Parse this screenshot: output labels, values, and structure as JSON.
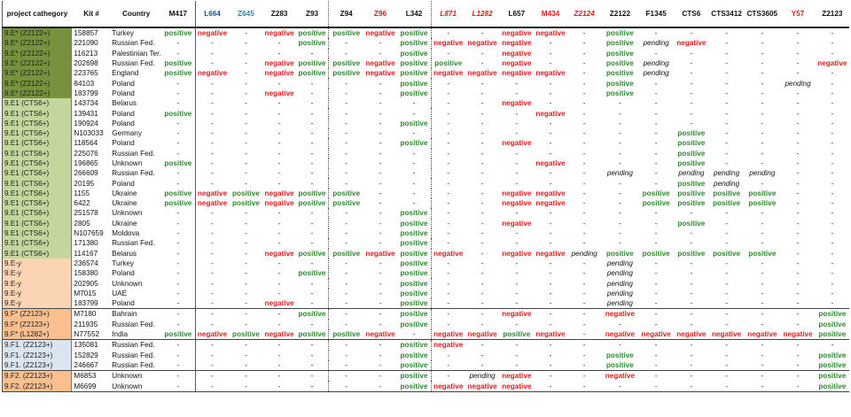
{
  "colors": {
    "positive": "#2d8a2d",
    "negative": "#e01b1b",
    "dark_green": "#76923c",
    "light_green": "#c3d69b",
    "peach": "#fbd4b4",
    "orange": "#fabf8f",
    "light_blue": "#dbe5f1",
    "header_blue": "#1f4e9c",
    "header_teal": "#31849b",
    "header_red": "#e01b1b"
  },
  "table": {
    "headers": [
      {
        "label": "project cathegory",
        "color": "#111111",
        "italic": false
      },
      {
        "label": "Kit #",
        "color": "#111111",
        "italic": false
      },
      {
        "label": "Country",
        "color": "#111111",
        "italic": false
      },
      {
        "label": "M417",
        "color": "#111111",
        "italic": false
      },
      {
        "label": "L664",
        "color": "#1f4e9c",
        "italic": false
      },
      {
        "label": "Z645",
        "color": "#31849b",
        "italic": false
      },
      {
        "label": "Z283",
        "color": "#111111",
        "italic": false
      },
      {
        "label": "Z93",
        "color": "#111111",
        "italic": false
      },
      {
        "label": "Z94",
        "color": "#111111",
        "italic": false
      },
      {
        "label": "Z96",
        "color": "#e01b1b",
        "italic": false
      },
      {
        "label": "L342",
        "color": "#111111",
        "italic": false
      },
      {
        "label": "L871",
        "color": "#e01b1b",
        "italic": true
      },
      {
        "label": "L1282",
        "color": "#e01b1b",
        "italic": true
      },
      {
        "label": "L657",
        "color": "#111111",
        "italic": false
      },
      {
        "label": "M434",
        "color": "#e01b1b",
        "italic": false
      },
      {
        "label": "Z2124",
        "color": "#e01b1b",
        "italic": true
      },
      {
        "label": "Z2122",
        "color": "#111111",
        "italic": false
      },
      {
        "label": "F1345",
        "color": "#111111",
        "italic": false
      },
      {
        "label": "CTS6",
        "color": "#111111",
        "italic": false
      },
      {
        "label": "CTS3412",
        "color": "#111111",
        "italic": false
      },
      {
        "label": "CTS3605",
        "color": "#111111",
        "italic": false
      },
      {
        "label": "Y57",
        "color": "#e01b1b",
        "italic": false
      },
      {
        "label": "Z2123",
        "color": "#111111",
        "italic": false
      }
    ],
    "rows": [
      {
        "cat": "9.E* (Z2122+)",
        "bg": "#76923c",
        "kit": "158857",
        "country": "Turkey",
        "sep": false,
        "vals": [
          "P",
          "N",
          "-",
          "N",
          "P",
          "P",
          "N",
          "P",
          "-",
          "-",
          "N",
          "N",
          "-",
          "P",
          "-",
          "-",
          "-",
          "-",
          "-",
          "-"
        ]
      },
      {
        "cat": "9.E* (Z2122+)",
        "bg": "#76923c",
        "kit": "221090",
        "country": "Russian Fed.",
        "sep": false,
        "vals": [
          "-",
          "-",
          "-",
          "-",
          "P",
          "-",
          "-",
          "P",
          "N",
          "N",
          "N",
          "-",
          "-",
          "P",
          "D",
          "N",
          "-",
          "-",
          "-",
          "-"
        ]
      },
      {
        "cat": "9.E* (Z2122+)",
        "bg": "#76923c",
        "kit": "116213",
        "country": "Palestinian Ter.",
        "sep": false,
        "vals": [
          "-",
          "-",
          "-",
          "-",
          "-",
          "-",
          "-",
          "P",
          "-",
          "-",
          "N",
          "-",
          "-",
          "P",
          "-",
          "-",
          "-",
          "-",
          "-",
          "-"
        ]
      },
      {
        "cat": "9.E* (Z2122+)",
        "bg": "#76923c",
        "kit": "202698",
        "country": "Russian Fed.",
        "sep": false,
        "vals": [
          "P",
          "-",
          "-",
          "N",
          "P",
          "P",
          "N",
          "P",
          "P",
          "-",
          "N",
          "-",
          "-",
          "P",
          "D",
          "-",
          "-",
          "-",
          "-",
          "N"
        ]
      },
      {
        "cat": "9.E* (Z2122+)",
        "bg": "#76923c",
        "kit": "223765",
        "country": "England",
        "sep": false,
        "vals": [
          "P",
          "N",
          "-",
          "N",
          "P",
          "P",
          "N",
          "P",
          "N",
          "N",
          "N",
          "N",
          "-",
          "P",
          "D",
          "-",
          "-",
          "-",
          "-",
          "-"
        ]
      },
      {
        "cat": "9.E* (Z2122+)",
        "bg": "#76923c",
        "kit": "84103",
        "country": "Poland",
        "sep": false,
        "vals": [
          "-",
          "-",
          "-",
          "-",
          "-",
          "-",
          "-",
          "P",
          "-",
          "-",
          "-",
          "-",
          "-",
          "P",
          "-",
          "-",
          "-",
          "-",
          "D",
          "-"
        ]
      },
      {
        "cat": "9.E* (Z2122+)",
        "bg": "#76923c",
        "kit": "183799",
        "country": "Poland",
        "sep": false,
        "vals": [
          "-",
          "-",
          "-",
          "N",
          "-",
          "-",
          "-",
          "P",
          "-",
          "-",
          "-",
          "-",
          "-",
          "P",
          "-",
          "-",
          "-",
          "-",
          "-",
          "-"
        ]
      },
      {
        "cat": "9.E1 (CTS6+)",
        "bg": "#c3d69b",
        "kit": "143734",
        "country": "Belarus",
        "sep": false,
        "vals": [
          "-",
          "-",
          "-",
          "-",
          "-",
          "-",
          "-",
          "-",
          "-",
          "-",
          "N",
          "-",
          "-",
          "-",
          "-",
          "-",
          "-",
          "-",
          "-",
          "-"
        ]
      },
      {
        "cat": "9.E1 (CTS6+)",
        "bg": "#c3d69b",
        "kit": "139431",
        "country": "Poland",
        "sep": false,
        "vals": [
          "P",
          "-",
          "-",
          "-",
          "-",
          "-",
          "-",
          "-",
          "-",
          "-",
          "-",
          "N",
          "-",
          "-",
          "-",
          "-",
          "-",
          "-",
          "-",
          "-"
        ]
      },
      {
        "cat": "9.E1 (CTS6+)",
        "bg": "#c3d69b",
        "kit": "190924",
        "country": "Poland",
        "sep": false,
        "vals": [
          "-",
          "-",
          "-",
          "-",
          "-",
          "-",
          "-",
          "P",
          "-",
          "-",
          "-",
          "-",
          "-",
          "-",
          "-",
          "-",
          "-",
          "-",
          "-",
          "-"
        ]
      },
      {
        "cat": "9.E1 (CTS6+)",
        "bg": "#c3d69b",
        "kit": "N103033",
        "country": "Germany",
        "sep": false,
        "vals": [
          "-",
          "-",
          "-",
          "-",
          "-",
          "-",
          "-",
          "-",
          "-",
          "-",
          "-",
          "-",
          "-",
          "-",
          "-",
          "P",
          "-",
          "-",
          "-",
          "-"
        ]
      },
      {
        "cat": "9.E1 (CTS6+)",
        "bg": "#c3d69b",
        "kit": "118564",
        "country": "Poland",
        "sep": false,
        "vals": [
          "-",
          "-",
          "-",
          "-",
          "-",
          "-",
          "-",
          "P",
          "-",
          "-",
          "N",
          "-",
          "-",
          "-",
          "-",
          "P",
          "-",
          "-",
          "-",
          "-"
        ]
      },
      {
        "cat": "9.E1 (CTS6+)",
        "bg": "#c3d69b",
        "kit": "225076",
        "country": "Russian Fed.",
        "sep": false,
        "vals": [
          "-",
          "-",
          "-",
          "-",
          "-",
          "-",
          "-",
          "-",
          "-",
          "-",
          "-",
          "-",
          "-",
          "-",
          "-",
          "P",
          "-",
          "-",
          "-",
          "-"
        ]
      },
      {
        "cat": "9.E1 (CTS6+)",
        "bg": "#c3d69b",
        "kit": "196865",
        "country": "Unknown",
        "sep": false,
        "vals": [
          "P",
          "-",
          "-",
          "-",
          "-",
          "-",
          "-",
          "-",
          "-",
          "-",
          "-",
          "N",
          "-",
          "-",
          "-",
          "P",
          "-",
          "-",
          "-",
          "-"
        ]
      },
      {
        "cat": "9.E1 (CTS6+)",
        "bg": "#c3d69b",
        "kit": "266609",
        "country": "Russian Fed.",
        "sep": false,
        "vals": [
          "-",
          "-",
          "-",
          "-",
          "-",
          "-",
          "-",
          "-",
          "-",
          "-",
          "-",
          "-",
          "-",
          "D",
          "-",
          "D",
          "D",
          "D",
          "-",
          "-"
        ]
      },
      {
        "cat": "9.E1 (CTS6+)",
        "bg": "#c3d69b",
        "kit": "20195",
        "country": "Poland",
        "sep": false,
        "vals": [
          "-",
          "-",
          "-",
          "-",
          "-",
          "-",
          "-",
          "-",
          "-",
          "-",
          "-",
          "-",
          "-",
          "-",
          "-",
          "P",
          "D",
          "-",
          "-",
          "-"
        ]
      },
      {
        "cat": "9.E1 (CTS6+)",
        "bg": "#c3d69b",
        "kit": "1155",
        "country": "Ukraine",
        "sep": false,
        "vals": [
          "P",
          "N",
          "P",
          "N",
          "P",
          "P",
          "-",
          "-",
          "-",
          "-",
          "N",
          "N",
          "-",
          "-",
          "P",
          "P",
          "P",
          "P",
          "-",
          "-"
        ]
      },
      {
        "cat": "9.E1 (CTS6+)",
        "bg": "#c3d69b",
        "kit": "6422",
        "country": "Ukraine",
        "sep": false,
        "vals": [
          "P",
          "N",
          "P",
          "N",
          "P",
          "P",
          "-",
          "-",
          "-",
          "-",
          "N",
          "N",
          "-",
          "-",
          "P",
          "P",
          "P",
          "P",
          "-",
          "-"
        ]
      },
      {
        "cat": "9.E1 (CTS6+)",
        "bg": "#c3d69b",
        "kit": "251578",
        "country": "Unknown",
        "sep": false,
        "vals": [
          "-",
          "-",
          "-",
          "-",
          "-",
          "-",
          "-",
          "P",
          "-",
          "-",
          "-",
          "-",
          "-",
          "-",
          "-",
          "-",
          "-",
          "-",
          "-",
          "-"
        ]
      },
      {
        "cat": "9.E1 (CTS6+)",
        "bg": "#c3d69b",
        "kit": "2805",
        "country": "Ukraine",
        "sep": false,
        "vals": [
          "-",
          "-",
          "-",
          "-",
          "-",
          "-",
          "-",
          "P",
          "-",
          "-",
          "N",
          "-",
          "-",
          "-",
          "-",
          "P",
          "-",
          "-",
          "-",
          "-"
        ]
      },
      {
        "cat": "9.E1 (CTS6+)",
        "bg": "#c3d69b",
        "kit": "N107659",
        "country": "Moldova",
        "sep": false,
        "vals": [
          "-",
          "-",
          "-",
          "-",
          "-",
          "-",
          "-",
          "P",
          "-",
          "-",
          "-",
          "-",
          "-",
          "-",
          "-",
          "-",
          "-",
          "-",
          "-",
          "-"
        ]
      },
      {
        "cat": "9.E1 (CTS6+)",
        "bg": "#c3d69b",
        "kit": "171380",
        "country": "Russian Fed.",
        "sep": false,
        "vals": [
          "-",
          "-",
          "-",
          "-",
          "-",
          "-",
          "-",
          "P",
          "-",
          "-",
          "-",
          "-",
          "-",
          "-",
          "-",
          "-",
          "-",
          "-",
          "-",
          "-"
        ]
      },
      {
        "cat": "9.E1 (CTS6+)",
        "bg": "#c3d69b",
        "kit": "114167",
        "country": "Belarus",
        "sep": false,
        "vals": [
          "-",
          "-",
          "-",
          "N",
          "P",
          "P",
          "N",
          "P",
          "N",
          "-",
          "N",
          "N",
          "D",
          "P",
          "P",
          "P",
          "P",
          "P",
          "-",
          "-"
        ]
      },
      {
        "cat": "9.E-y",
        "bg": "#fbd4b4",
        "kit": "236574",
        "country": "Turkey",
        "sep": false,
        "vals": [
          "-",
          "-",
          "-",
          "-",
          "-",
          "-",
          "-",
          "P",
          "-",
          "-",
          "-",
          "-",
          "-",
          "D",
          "-",
          "-",
          "-",
          "-",
          "-",
          "-"
        ]
      },
      {
        "cat": "9.E-y",
        "bg": "#fbd4b4",
        "kit": "158380",
        "country": "Poland",
        "sep": false,
        "vals": [
          "-",
          "-",
          "-",
          "-",
          "P",
          "-",
          "-",
          "P",
          "-",
          "-",
          "-",
          "-",
          "-",
          "D",
          "-",
          "-",
          "-",
          "-",
          "-",
          "-"
        ]
      },
      {
        "cat": "9.E-y",
        "bg": "#fbd4b4",
        "kit": "202905",
        "country": "Unknown",
        "sep": false,
        "vals": [
          "-",
          "-",
          "-",
          "-",
          "-",
          "-",
          "-",
          "P",
          "-",
          "-",
          "-",
          "-",
          "-",
          "D",
          "-",
          "-",
          "-",
          "-",
          "-",
          "-"
        ]
      },
      {
        "cat": "9.E-y",
        "bg": "#fbd4b4",
        "kit": "M7015",
        "country": "UAE",
        "sep": false,
        "vals": [
          "-",
          "-",
          "-",
          "-",
          "-",
          "-",
          "-",
          "P",
          "-",
          "-",
          "-",
          "-",
          "-",
          "D",
          "-",
          "-",
          "-",
          "-",
          "-",
          "-"
        ]
      },
      {
        "cat": "9.E-y",
        "bg": "#fbd4b4",
        "kit": "183799",
        "country": "Poland",
        "sep": false,
        "vals": [
          "-",
          "-",
          "-",
          "N",
          "-",
          "-",
          "-",
          "P",
          "-",
          "-",
          "-",
          "-",
          "-",
          "D",
          "-",
          "-",
          "-",
          "-",
          "-",
          "-"
        ]
      },
      {
        "cat": "9.F* (Z2123+)",
        "bg": "#fabf8f",
        "kit": "M7180",
        "country": "Bahrain",
        "sep": true,
        "vals": [
          "-",
          "-",
          "-",
          "-",
          "P",
          "-",
          "-",
          "P",
          "-",
          "-",
          "N",
          "-",
          "-",
          "N",
          "-",
          "-",
          "-",
          "-",
          "-",
          "P"
        ]
      },
      {
        "cat": "9.F* (Z2123+)",
        "bg": "#fabf8f",
        "kit": "211935",
        "country": "Russian Fed.",
        "sep": false,
        "vals": [
          "-",
          "-",
          "-",
          "-",
          "-",
          "-",
          "-",
          "P",
          "-",
          "-",
          "-",
          "-",
          "-",
          "-",
          "-",
          "-",
          "-",
          "-",
          "-",
          "P"
        ]
      },
      {
        "cat": "9.F* (L1282+)",
        "bg": "#fabf8f",
        "kit": "N77552",
        "country": "India",
        "sep": false,
        "vals": [
          "P",
          "N",
          "P",
          "N",
          "P",
          "P",
          "N",
          "-",
          "N",
          "N",
          "P",
          "N",
          "-",
          "N",
          "N",
          "N",
          "N",
          "N",
          "N",
          "P"
        ]
      },
      {
        "cat": "9.F1. (Z2123+)",
        "bg": "#dbe5f1",
        "kit": "135081",
        "country": "Russian Fed.",
        "sep": true,
        "vals": [
          "-",
          "-",
          "-",
          "-",
          "-",
          "-",
          "-",
          "P",
          "N",
          "-",
          "-",
          "-",
          "-",
          "-",
          "-",
          "-",
          "-",
          "-",
          "-",
          "-"
        ]
      },
      {
        "cat": "9.F1. (Z2123+)",
        "bg": "#dbe5f1",
        "kit": "152829",
        "country": "Russian Fed.",
        "sep": false,
        "vals": [
          "-",
          "-",
          "-",
          "-",
          "-",
          "-",
          "-",
          "P",
          "-",
          "-",
          "-",
          "-",
          "-",
          "P",
          "-",
          "-",
          "-",
          "-",
          "-",
          "P"
        ]
      },
      {
        "cat": "9.F1. (Z2123+)",
        "bg": "#dbe5f1",
        "kit": "246667",
        "country": "Russian Fed.",
        "sep": false,
        "vals": [
          "-",
          "-",
          "-",
          "-",
          "-",
          "-",
          "-",
          "P",
          "-",
          "-",
          "-",
          "-",
          "-",
          "P",
          "-",
          "-",
          "-",
          "-",
          "-",
          "P"
        ]
      },
      {
        "cat": "9.F2. (Z2123+)",
        "bg": "#fabf8f",
        "kit": "M6853",
        "country": "Unknown",
        "sep": true,
        "vals": [
          "-",
          "-",
          "-",
          "-",
          "-",
          "-",
          "-",
          "P",
          "-",
          "D",
          "N",
          "-",
          "-",
          "N",
          "-",
          "-",
          "-",
          "-",
          "-",
          "P"
        ]
      },
      {
        "cat": "9.F2. (Z2123+)",
        "bg": "#fabf8f",
        "kit": "M6699",
        "country": "Unknown",
        "sep": false,
        "vals": [
          "-",
          "-",
          "-",
          "-",
          "-",
          "-",
          "-",
          "P",
          "N",
          "N",
          "N",
          "-",
          "-",
          "-",
          "-",
          "-",
          "-",
          "-",
          "-",
          "P"
        ]
      }
    ]
  },
  "value_labels": {
    "P": "positive",
    "N": "negative",
    "D": "pending",
    "-": "-"
  }
}
